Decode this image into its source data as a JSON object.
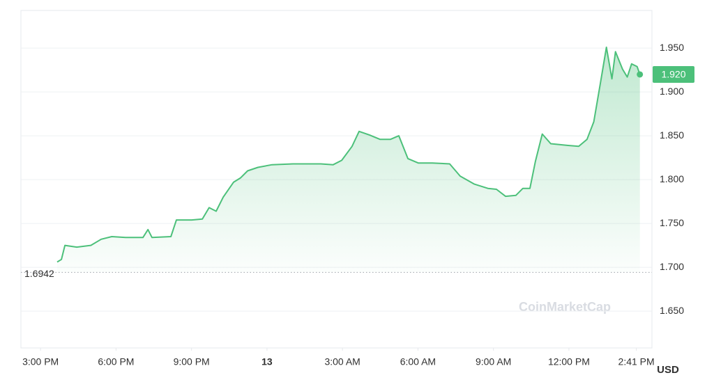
{
  "chart_data": {
    "type": "line",
    "color": "#4cc07a",
    "grid": true,
    "x": [
      0.66,
      0.83,
      0.97,
      1.44,
      2.0,
      2.41,
      2.83,
      3.38,
      4.07,
      4.27,
      4.43,
      5.18,
      5.4,
      6.01,
      6.43,
      6.7,
      6.98,
      7.26,
      7.67,
      7.95,
      8.23,
      8.64,
      9.2,
      10.03,
      11.14,
      11.63,
      11.97,
      12.38,
      12.66,
      13.07,
      13.49,
      13.91,
      14.24,
      14.6,
      15.01,
      15.57,
      16.26,
      16.68,
      17.23,
      17.78,
      18.12,
      18.48,
      18.89,
      19.17,
      19.45,
      19.67,
      19.94,
      20.28,
      20.97,
      21.39,
      21.72,
      21.99,
      22.27,
      22.49,
      22.71,
      22.85,
      23.13,
      23.32,
      23.49,
      23.71,
      23.82
    ],
    "values": [
      1.706,
      1.709,
      1.725,
      1.723,
      1.725,
      1.732,
      1.735,
      1.734,
      1.734,
      1.743,
      1.734,
      1.735,
      1.754,
      1.754,
      1.755,
      1.768,
      1.764,
      1.78,
      1.797,
      1.802,
      1.81,
      1.814,
      1.817,
      1.818,
      1.818,
      1.817,
      1.822,
      1.838,
      1.855,
      1.851,
      1.846,
      1.846,
      1.85,
      1.824,
      1.819,
      1.819,
      1.818,
      1.804,
      1.795,
      1.79,
      1.789,
      1.781,
      1.782,
      1.79,
      1.79,
      1.821,
      1.852,
      1.841,
      1.839,
      1.838,
      1.846,
      1.866,
      1.913,
      1.951,
      1.915,
      1.946,
      1.926,
      1.917,
      1.932,
      1.929,
      1.92
    ],
    "xlim": [
      -0.78,
      24.3
    ],
    "xticks": [
      {
        "value": 0,
        "label": "3:00 PM"
      },
      {
        "value": 3,
        "label": "6:00 PM"
      },
      {
        "value": 6,
        "label": "9:00 PM"
      },
      {
        "value": 9,
        "label": "13"
      },
      {
        "value": 12,
        "label": "3:00 AM"
      },
      {
        "value": 15,
        "label": "6:00 AM"
      },
      {
        "value": 18,
        "label": "9:00 AM"
      },
      {
        "value": 21,
        "label": "12:00 PM"
      },
      {
        "value": 23.68,
        "label": "2:41 PM"
      }
    ],
    "ylim": [
      1.608,
      1.993
    ],
    "yticks": [
      {
        "value": 1.65,
        "label": "1.650"
      },
      {
        "value": 1.7,
        "label": "1.700"
      },
      {
        "value": 1.75,
        "label": "1.750"
      },
      {
        "value": 1.8,
        "label": "1.800"
      },
      {
        "value": 1.85,
        "label": "1.850"
      },
      {
        "value": 1.9,
        "label": "1.900"
      },
      {
        "value": 1.95,
        "label": "1.950"
      }
    ],
    "open_price": 1.6942,
    "last_price": {
      "value": 1.92,
      "label": "1.920"
    },
    "y_axis_unit": "USD",
    "watermark": "CoinMarketCap"
  }
}
